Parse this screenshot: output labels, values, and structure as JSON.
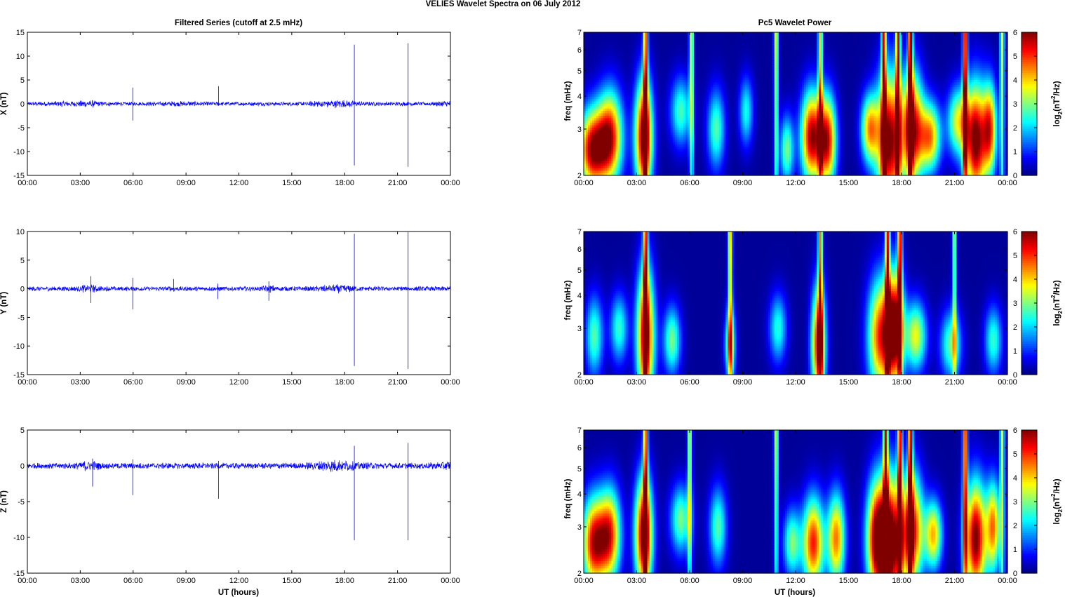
{
  "figure": {
    "suptitle": "VELIES Wavelet Spectra on 06 July      2012",
    "left_title": "Filtered Series (cutoff at 2.5 mHz)",
    "right_title": "Pc5 Wavelet Power",
    "xlabel": "UT (hours)",
    "spec_ylabel": "freq (mHz)",
    "cbar_label_parts": [
      "log",
      "2",
      "(nT",
      "2",
      "/Hz)"
    ]
  },
  "colors": {
    "trace": "#0000ff",
    "axis": "#000000",
    "bg": "#ffffff"
  },
  "chart_data": [
    {
      "type": "line",
      "name": "X",
      "ylabel": "X (nT)",
      "x_ticks": [
        "00:00",
        "03:00",
        "06:00",
        "09:00",
        "12:00",
        "15:00",
        "18:00",
        "21:00",
        "00:00"
      ],
      "xlim": [
        0,
        24
      ],
      "ylim": [
        -15,
        15
      ],
      "y_ticks": [
        15,
        10,
        5,
        0,
        -5,
        -10,
        -15
      ],
      "noise_amp": 0.35,
      "spikes": [
        [
          5.98,
          3.4,
          -3.5
        ],
        [
          10.85,
          3.7,
          -0.4
        ],
        [
          18.55,
          12.4,
          -12.9
        ],
        [
          21.6,
          12.7,
          -13.2
        ]
      ],
      "bursts": [
        [
          3.5,
          0.6,
          0.9
        ],
        [
          17.5,
          1.2,
          1.1
        ],
        [
          23.8,
          0.6,
          0.7
        ],
        [
          2.0,
          1.0,
          0.5
        ],
        [
          8.6,
          1.0,
          0.4
        ]
      ]
    },
    {
      "type": "line",
      "name": "Y",
      "ylabel": "Y (nT)",
      "x_ticks": [
        "00:00",
        "03:00",
        "06:00",
        "09:00",
        "12:00",
        "15:00",
        "18:00",
        "21:00",
        "00:00"
      ],
      "xlim": [
        0,
        24
      ],
      "ylim": [
        -15,
        10
      ],
      "y_ticks": [
        10,
        5,
        0,
        -5,
        -10,
        -15
      ],
      "noise_amp": 0.35,
      "spikes": [
        [
          3.6,
          2.2,
          -2.5
        ],
        [
          5.98,
          1.9,
          -3.6
        ],
        [
          8.3,
          1.7,
          -0.5
        ],
        [
          10.8,
          0.9,
          -1.8
        ],
        [
          13.7,
          1.3,
          -2.1
        ],
        [
          18.55,
          9.6,
          -13.5
        ],
        [
          21.6,
          9.9,
          -14.0
        ]
      ],
      "bursts": [
        [
          3.5,
          0.5,
          0.9
        ],
        [
          17.6,
          1.0,
          0.9
        ],
        [
          13.7,
          0.4,
          0.6
        ]
      ]
    },
    {
      "type": "line",
      "name": "Z",
      "ylabel": "Z (nT)",
      "x_ticks": [
        "00:00",
        "03:00",
        "06:00",
        "09:00",
        "12:00",
        "15:00",
        "18:00",
        "21:00",
        "00:00"
      ],
      "xlim": [
        0,
        24
      ],
      "ylim": [
        -15,
        5
      ],
      "y_ticks": [
        5,
        0,
        -5,
        -10,
        -15
      ],
      "noise_amp": 0.35,
      "spikes": [
        [
          3.7,
          1.0,
          -2.9
        ],
        [
          5.98,
          0.9,
          -4.1
        ],
        [
          10.85,
          0.7,
          -4.6
        ],
        [
          18.55,
          2.8,
          -10.4
        ],
        [
          21.6,
          3.2,
          -10.4
        ]
      ],
      "bursts": [
        [
          3.5,
          0.6,
          0.9
        ],
        [
          17.5,
          1.3,
          1.1
        ],
        [
          23.8,
          0.7,
          0.7
        ]
      ]
    },
    {
      "type": "heatmap",
      "name": "X wavelet power",
      "ylabel": "freq (mHz)",
      "x_ticks": [
        "00:00",
        "03:00",
        "06:00",
        "09:00",
        "12:00",
        "15:00",
        "18:00",
        "21:00",
        "00:00"
      ],
      "xlim": [
        0,
        24
      ],
      "ylim": [
        2,
        7
      ],
      "y_scale": "log",
      "y_ticks": [
        2,
        3,
        4,
        5,
        6,
        7
      ],
      "clim": [
        0,
        6
      ],
      "colorbar_ticks": [
        0,
        1,
        2,
        3,
        4,
        5,
        6
      ],
      "colormap": "jet",
      "blobs": [
        [
          0.5,
          2.5,
          5.6,
          0.8,
          0.35
        ],
        [
          1.5,
          2.8,
          5.0,
          0.7,
          0.4
        ],
        [
          3.4,
          2.8,
          6.0,
          0.5,
          0.5
        ],
        [
          5.5,
          3.5,
          2.5,
          0.6,
          0.3
        ],
        [
          7.5,
          3.0,
          2.6,
          0.5,
          0.35
        ],
        [
          9.2,
          3.5,
          2.2,
          0.4,
          0.3
        ],
        [
          11.5,
          2.5,
          2.8,
          0.4,
          0.3
        ],
        [
          12.9,
          2.8,
          5.6,
          0.6,
          0.4
        ],
        [
          13.8,
          2.7,
          5.2,
          0.5,
          0.4
        ],
        [
          16.2,
          3.0,
          4.0,
          0.5,
          0.3
        ],
        [
          17.3,
          2.7,
          6.0,
          0.7,
          0.6
        ],
        [
          18.6,
          3.0,
          5.6,
          0.6,
          0.5
        ],
        [
          19.6,
          2.8,
          4.3,
          0.6,
          0.3
        ],
        [
          21.2,
          3.2,
          3.4,
          0.6,
          0.3
        ],
        [
          22.2,
          2.7,
          6.0,
          0.6,
          0.5
        ],
        [
          23.0,
          3.0,
          4.5,
          0.4,
          0.4
        ]
      ],
      "ridges": [
        [
          3.5,
          4.8
        ],
        [
          6.1,
          3.6
        ],
        [
          10.9,
          3.6
        ],
        [
          13.4,
          4.0
        ],
        [
          17.0,
          5.0
        ],
        [
          17.8,
          5.2
        ],
        [
          18.5,
          6.0
        ],
        [
          21.6,
          6.0
        ],
        [
          23.7,
          3.6
        ]
      ]
    },
    {
      "type": "heatmap",
      "name": "Y wavelet power",
      "ylabel": "freq (mHz)",
      "x_ticks": [
        "00:00",
        "03:00",
        "06:00",
        "09:00",
        "12:00",
        "15:00",
        "18:00",
        "21:00",
        "00:00"
      ],
      "xlim": [
        0,
        24
      ],
      "ylim": [
        2,
        7
      ],
      "y_scale": "log",
      "y_ticks": [
        2,
        3,
        4,
        5,
        6,
        7
      ],
      "clim": [
        0,
        6
      ],
      "colorbar_ticks": [
        0,
        1,
        2,
        3,
        4,
        5,
        6
      ],
      "colormap": "jet",
      "blobs": [
        [
          0.6,
          2.8,
          2.6,
          0.5,
          0.35
        ],
        [
          2.0,
          3.0,
          2.4,
          0.5,
          0.3
        ],
        [
          3.5,
          2.8,
          5.6,
          0.5,
          0.6
        ],
        [
          5.0,
          2.7,
          2.8,
          0.5,
          0.3
        ],
        [
          8.3,
          2.6,
          3.2,
          0.3,
          0.3
        ],
        [
          11.0,
          3.0,
          2.3,
          0.5,
          0.3
        ],
        [
          13.3,
          2.6,
          5.4,
          0.4,
          0.5
        ],
        [
          16.8,
          2.8,
          4.8,
          0.7,
          0.5
        ],
        [
          17.6,
          3.0,
          5.8,
          0.5,
          0.5
        ],
        [
          18.8,
          2.8,
          3.5,
          0.6,
          0.3
        ],
        [
          20.8,
          2.6,
          2.7,
          0.6,
          0.3
        ],
        [
          23.2,
          2.7,
          2.4,
          0.5,
          0.3
        ]
      ],
      "ridges": [
        [
          3.5,
          4.8
        ],
        [
          8.3,
          4.2
        ],
        [
          13.4,
          4.4
        ],
        [
          17.2,
          5.0
        ],
        [
          17.9,
          5.2
        ],
        [
          21.0,
          3.2
        ]
      ]
    },
    {
      "type": "heatmap",
      "name": "Z wavelet power",
      "ylabel": "freq (mHz)",
      "x_ticks": [
        "00:00",
        "03:00",
        "06:00",
        "09:00",
        "12:00",
        "15:00",
        "18:00",
        "21:00",
        "00:00"
      ],
      "xlim": [
        0,
        24
      ],
      "ylim": [
        2,
        7
      ],
      "y_scale": "log",
      "y_ticks": [
        2,
        3,
        4,
        5,
        6,
        7
      ],
      "clim": [
        0,
        6
      ],
      "colorbar_ticks": [
        0,
        1,
        2,
        3,
        4,
        5,
        6
      ],
      "colormap": "jet",
      "blobs": [
        [
          0.6,
          2.6,
          5.4,
          0.7,
          0.4
        ],
        [
          1.5,
          2.8,
          4.5,
          0.6,
          0.4
        ],
        [
          3.4,
          2.8,
          6.0,
          0.5,
          0.5
        ],
        [
          5.5,
          3.2,
          2.8,
          0.6,
          0.3
        ],
        [
          7.6,
          3.0,
          2.6,
          0.5,
          0.35
        ],
        [
          11.8,
          2.6,
          2.8,
          0.5,
          0.3
        ],
        [
          13.0,
          2.6,
          5.0,
          0.6,
          0.4
        ],
        [
          14.3,
          2.7,
          4.4,
          0.5,
          0.4
        ],
        [
          16.6,
          2.7,
          5.4,
          0.6,
          0.5
        ],
        [
          17.4,
          2.6,
          6.0,
          0.7,
          0.6
        ],
        [
          18.6,
          2.9,
          5.4,
          0.6,
          0.5
        ],
        [
          19.8,
          2.8,
          4.0,
          0.5,
          0.3
        ],
        [
          22.2,
          2.7,
          6.0,
          0.6,
          0.5
        ],
        [
          23.2,
          3.0,
          4.2,
          0.4,
          0.4
        ]
      ],
      "ridges": [
        [
          3.5,
          4.8
        ],
        [
          6.0,
          3.4
        ],
        [
          10.9,
          3.4
        ],
        [
          17.1,
          5.0
        ],
        [
          17.9,
          5.2
        ],
        [
          18.5,
          5.6
        ],
        [
          21.6,
          5.6
        ],
        [
          23.7,
          3.5
        ]
      ]
    }
  ]
}
